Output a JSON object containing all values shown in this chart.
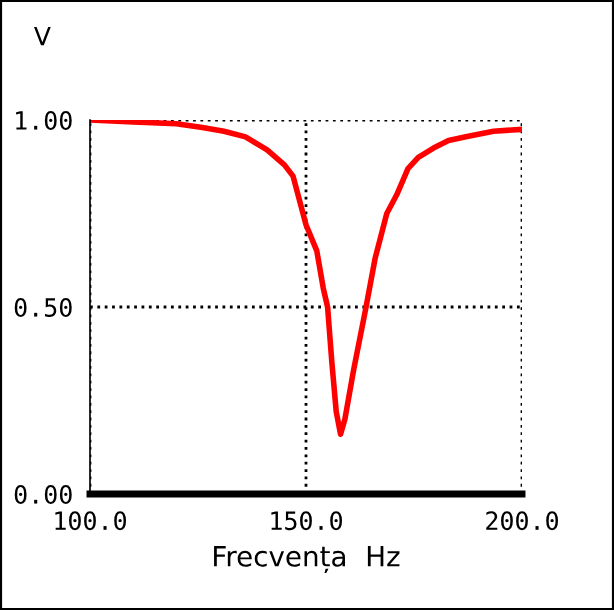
{
  "chart_data": {
    "type": "line",
    "ylabel": "V",
    "xlabel": "Frecvența  Hz",
    "x": [
      100,
      110,
      120,
      126,
      131,
      136,
      141,
      145,
      147,
      150,
      152.5,
      154,
      155,
      156,
      157,
      158,
      159,
      161,
      163.9,
      166,
      168.7,
      171,
      173.6,
      176,
      179.5,
      183,
      187,
      193.4,
      200
    ],
    "series": [
      {
        "color": "#ff0000",
        "values": [
          1.0,
          0.995,
          0.99,
          0.98,
          0.97,
          0.955,
          0.92,
          0.88,
          0.85,
          0.72,
          0.65,
          0.55,
          0.5,
          0.35,
          0.22,
          0.16,
          0.2,
          0.33,
          0.5,
          0.63,
          0.75,
          0.8,
          0.87,
          0.9,
          0.925,
          0.945,
          0.955,
          0.97,
          0.975
        ]
      }
    ],
    "xlim": [
      100,
      200
    ],
    "xticks": [
      {
        "value": 100,
        "label": "100.0"
      },
      {
        "value": 150,
        "label": "150.0"
      },
      {
        "value": 200,
        "label": "200.0"
      }
    ],
    "ylim": [
      0,
      1
    ],
    "yticks": [
      {
        "value": 0,
        "label": "0.00"
      },
      {
        "value": 0.5,
        "label": "0.50"
      },
      {
        "value": 1,
        "label": "1.00"
      }
    ],
    "grid": true,
    "line_style": "solid",
    "marker": "none"
  }
}
